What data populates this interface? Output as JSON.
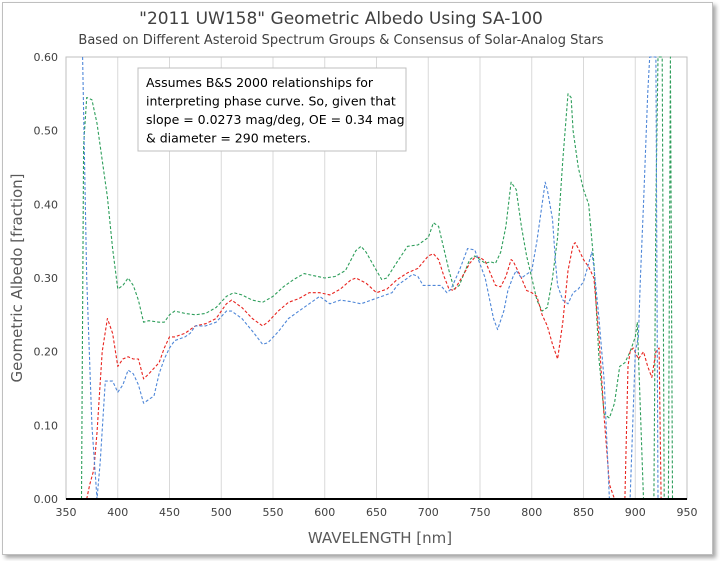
{
  "chart_data": {
    "type": "line",
    "title": "\"2011 UW158\" Geometric Albedo Using SA-100",
    "subtitle": "Based on Different Asteroid Spectrum Groups & Consensus of Solar-Analog Stars",
    "xlabel": "WAVELENGTH [nm]",
    "ylabel": "Geometric Albedo [fraction]",
    "xlim": [
      350,
      950
    ],
    "ylim": [
      0.0,
      0.6
    ],
    "x_ticks": [
      "350",
      "400",
      "450",
      "500",
      "550",
      "600",
      "650",
      "700",
      "750",
      "800",
      "850",
      "900",
      "950"
    ],
    "y_ticks": [
      "0.00",
      "0.10",
      "0.20",
      "0.30",
      "0.40",
      "0.50",
      "0.60"
    ],
    "grid": "vertical",
    "annotation": [
      "Assumes B&S 2000 relationships for",
      "interpreting phase curve.  So, given that",
      "slope = 0.0273 mag/deg, OE = 0.34 mag",
      " & diameter = 290 meters."
    ],
    "series": [
      {
        "color": "#2e9e5b",
        "style": "dashed",
        "points": [
          [
            365,
            0.0
          ],
          [
            367,
            0.48
          ],
          [
            370,
            0.545
          ],
          [
            375,
            0.542
          ],
          [
            380,
            0.51
          ],
          [
            385,
            0.46
          ],
          [
            390,
            0.41
          ],
          [
            395,
            0.34
          ],
          [
            400,
            0.285
          ],
          [
            405,
            0.29
          ],
          [
            410,
            0.3
          ],
          [
            415,
            0.29
          ],
          [
            420,
            0.27
          ],
          [
            425,
            0.24
          ],
          [
            430,
            0.242
          ],
          [
            440,
            0.24
          ],
          [
            445,
            0.24
          ],
          [
            450,
            0.25
          ],
          [
            455,
            0.255
          ],
          [
            465,
            0.252
          ],
          [
            475,
            0.25
          ],
          [
            485,
            0.252
          ],
          [
            495,
            0.26
          ],
          [
            505,
            0.275
          ],
          [
            512,
            0.28
          ],
          [
            520,
            0.277
          ],
          [
            530,
            0.27
          ],
          [
            540,
            0.267
          ],
          [
            550,
            0.275
          ],
          [
            560,
            0.288
          ],
          [
            570,
            0.298
          ],
          [
            580,
            0.306
          ],
          [
            590,
            0.303
          ],
          [
            600,
            0.3
          ],
          [
            610,
            0.302
          ],
          [
            620,
            0.31
          ],
          [
            630,
            0.337
          ],
          [
            635,
            0.343
          ],
          [
            640,
            0.335
          ],
          [
            650,
            0.31
          ],
          [
            655,
            0.298
          ],
          [
            660,
            0.3
          ],
          [
            670,
            0.322
          ],
          [
            680,
            0.343
          ],
          [
            690,
            0.345
          ],
          [
            700,
            0.355
          ],
          [
            705,
            0.375
          ],
          [
            710,
            0.37
          ],
          [
            715,
            0.34
          ],
          [
            720,
            0.31
          ],
          [
            725,
            0.285
          ],
          [
            730,
            0.29
          ],
          [
            740,
            0.325
          ],
          [
            745,
            0.33
          ],
          [
            750,
            0.325
          ],
          [
            755,
            0.32
          ],
          [
            760,
            0.322
          ],
          [
            765,
            0.32
          ],
          [
            770,
            0.335
          ],
          [
            775,
            0.37
          ],
          [
            780,
            0.43
          ],
          [
            785,
            0.42
          ],
          [
            790,
            0.37
          ],
          [
            795,
            0.33
          ],
          [
            800,
            0.3
          ],
          [
            805,
            0.27
          ],
          [
            810,
            0.255
          ],
          [
            815,
            0.26
          ],
          [
            820,
            0.3
          ],
          [
            825,
            0.355
          ],
          [
            830,
            0.46
          ],
          [
            835,
            0.55
          ],
          [
            838,
            0.545
          ],
          [
            840,
            0.5
          ],
          [
            845,
            0.45
          ],
          [
            850,
            0.42
          ],
          [
            855,
            0.4
          ],
          [
            860,
            0.32
          ],
          [
            865,
            0.19
          ],
          [
            870,
            0.115
          ],
          [
            875,
            0.11
          ],
          [
            880,
            0.13
          ],
          [
            885,
            0.18
          ],
          [
            890,
            0.185
          ],
          [
            895,
            0.2
          ],
          [
            900,
            0.22
          ],
          [
            902,
            0.24
          ],
          [
            905,
            0.12
          ],
          [
            908,
            0.0
          ],
          [
            918,
            0.0
          ],
          [
            920,
            0.4
          ],
          [
            922,
            0.6
          ],
          [
            926,
            0.6
          ],
          [
            928,
            0.0
          ],
          [
            932,
            0.0
          ],
          [
            934,
            0.6
          ],
          [
            936,
            0.0
          ]
        ]
      },
      {
        "color": "#e8241f",
        "style": "dashed",
        "points": [
          [
            370,
            0.0
          ],
          [
            373,
            0.02
          ],
          [
            377,
            0.04
          ],
          [
            380,
            0.09
          ],
          [
            385,
            0.2
          ],
          [
            390,
            0.245
          ],
          [
            395,
            0.225
          ],
          [
            400,
            0.18
          ],
          [
            405,
            0.19
          ],
          [
            410,
            0.193
          ],
          [
            415,
            0.19
          ],
          [
            420,
            0.19
          ],
          [
            425,
            0.163
          ],
          [
            430,
            0.17
          ],
          [
            440,
            0.185
          ],
          [
            445,
            0.205
          ],
          [
            450,
            0.22
          ],
          [
            455,
            0.22
          ],
          [
            465,
            0.225
          ],
          [
            475,
            0.235
          ],
          [
            485,
            0.238
          ],
          [
            495,
            0.245
          ],
          [
            505,
            0.265
          ],
          [
            510,
            0.27
          ],
          [
            520,
            0.26
          ],
          [
            530,
            0.245
          ],
          [
            540,
            0.235
          ],
          [
            545,
            0.24
          ],
          [
            555,
            0.255
          ],
          [
            565,
            0.267
          ],
          [
            575,
            0.272
          ],
          [
            585,
            0.28
          ],
          [
            595,
            0.28
          ],
          [
            605,
            0.277
          ],
          [
            615,
            0.285
          ],
          [
            625,
            0.297
          ],
          [
            630,
            0.3
          ],
          [
            640,
            0.293
          ],
          [
            650,
            0.28
          ],
          [
            660,
            0.285
          ],
          [
            670,
            0.298
          ],
          [
            680,
            0.307
          ],
          [
            690,
            0.313
          ],
          [
            700,
            0.33
          ],
          [
            705,
            0.333
          ],
          [
            710,
            0.325
          ],
          [
            715,
            0.303
          ],
          [
            720,
            0.285
          ],
          [
            725,
            0.283
          ],
          [
            735,
            0.307
          ],
          [
            740,
            0.32
          ],
          [
            745,
            0.328
          ],
          [
            750,
            0.328
          ],
          [
            755,
            0.323
          ],
          [
            765,
            0.29
          ],
          [
            770,
            0.288
          ],
          [
            775,
            0.302
          ],
          [
            780,
            0.325
          ],
          [
            782,
            0.323
          ],
          [
            790,
            0.3
          ],
          [
            795,
            0.283
          ],
          [
            800,
            0.28
          ],
          [
            805,
            0.275
          ],
          [
            810,
            0.25
          ],
          [
            815,
            0.235
          ],
          [
            820,
            0.21
          ],
          [
            825,
            0.19
          ],
          [
            830,
            0.24
          ],
          [
            835,
            0.31
          ],
          [
            840,
            0.345
          ],
          [
            842,
            0.348
          ],
          [
            845,
            0.34
          ],
          [
            850,
            0.325
          ],
          [
            855,
            0.315
          ],
          [
            860,
            0.3
          ],
          [
            865,
            0.22
          ],
          [
            870,
            0.11
          ],
          [
            875,
            0.02
          ],
          [
            880,
            0.0
          ],
          [
            890,
            0.0
          ],
          [
            893,
            0.18
          ],
          [
            895,
            0.2
          ],
          [
            898,
            0.205
          ],
          [
            903,
            0.19
          ],
          [
            908,
            0.2
          ],
          [
            912,
            0.18
          ],
          [
            916,
            0.165
          ],
          [
            920,
            0.2
          ],
          [
            923,
            0.205
          ],
          [
            925,
            0.0
          ]
        ]
      },
      {
        "color": "#4f87d8",
        "style": "dashed",
        "points": [
          [
            366,
            0.6
          ],
          [
            370,
            0.3
          ],
          [
            375,
            0.1
          ],
          [
            380,
            0.0
          ],
          [
            383,
            0.05
          ],
          [
            388,
            0.16
          ],
          [
            395,
            0.16
          ],
          [
            400,
            0.145
          ],
          [
            405,
            0.155
          ],
          [
            410,
            0.175
          ],
          [
            415,
            0.17
          ],
          [
            420,
            0.155
          ],
          [
            425,
            0.13
          ],
          [
            430,
            0.135
          ],
          [
            435,
            0.14
          ],
          [
            440,
            0.17
          ],
          [
            445,
            0.19
          ],
          [
            450,
            0.205
          ],
          [
            455,
            0.215
          ],
          [
            465,
            0.22
          ],
          [
            470,
            0.225
          ],
          [
            475,
            0.235
          ],
          [
            485,
            0.235
          ],
          [
            495,
            0.24
          ],
          [
            505,
            0.255
          ],
          [
            510,
            0.255
          ],
          [
            520,
            0.245
          ],
          [
            530,
            0.228
          ],
          [
            540,
            0.21
          ],
          [
            545,
            0.212
          ],
          [
            555,
            0.227
          ],
          [
            565,
            0.245
          ],
          [
            575,
            0.255
          ],
          [
            585,
            0.265
          ],
          [
            595,
            0.275
          ],
          [
            605,
            0.265
          ],
          [
            615,
            0.27
          ],
          [
            625,
            0.268
          ],
          [
            635,
            0.265
          ],
          [
            645,
            0.27
          ],
          [
            655,
            0.275
          ],
          [
            665,
            0.28
          ],
          [
            670,
            0.29
          ],
          [
            675,
            0.295
          ],
          [
            680,
            0.3
          ],
          [
            685,
            0.305
          ],
          [
            690,
            0.302
          ],
          [
            695,
            0.29
          ],
          [
            705,
            0.29
          ],
          [
            712,
            0.29
          ],
          [
            718,
            0.28
          ],
          [
            722,
            0.285
          ],
          [
            730,
            0.31
          ],
          [
            738,
            0.34
          ],
          [
            745,
            0.338
          ],
          [
            755,
            0.3
          ],
          [
            763,
            0.245
          ],
          [
            767,
            0.23
          ],
          [
            773,
            0.255
          ],
          [
            777,
            0.283
          ],
          [
            782,
            0.302
          ],
          [
            785,
            0.31
          ],
          [
            790,
            0.3
          ],
          [
            800,
            0.31
          ],
          [
            805,
            0.35
          ],
          [
            810,
            0.4
          ],
          [
            813,
            0.43
          ],
          [
            815,
            0.42
          ],
          [
            820,
            0.38
          ],
          [
            823,
            0.32
          ],
          [
            825,
            0.29
          ],
          [
            830,
            0.27
          ],
          [
            835,
            0.265
          ],
          [
            840,
            0.28
          ],
          [
            845,
            0.285
          ],
          [
            850,
            0.295
          ],
          [
            855,
            0.32
          ],
          [
            858,
            0.335
          ],
          [
            860,
            0.315
          ],
          [
            865,
            0.245
          ],
          [
            870,
            0.16
          ],
          [
            875,
            0.0
          ],
          [
            895,
            0.0
          ],
          [
            900,
            0.2
          ],
          [
            903,
            0.22
          ],
          [
            905,
            0.3
          ],
          [
            908,
            0.4
          ],
          [
            912,
            0.55
          ],
          [
            914,
            0.6
          ],
          [
            920,
            0.6
          ],
          [
            922,
            0.0
          ]
        ]
      }
    ]
  }
}
